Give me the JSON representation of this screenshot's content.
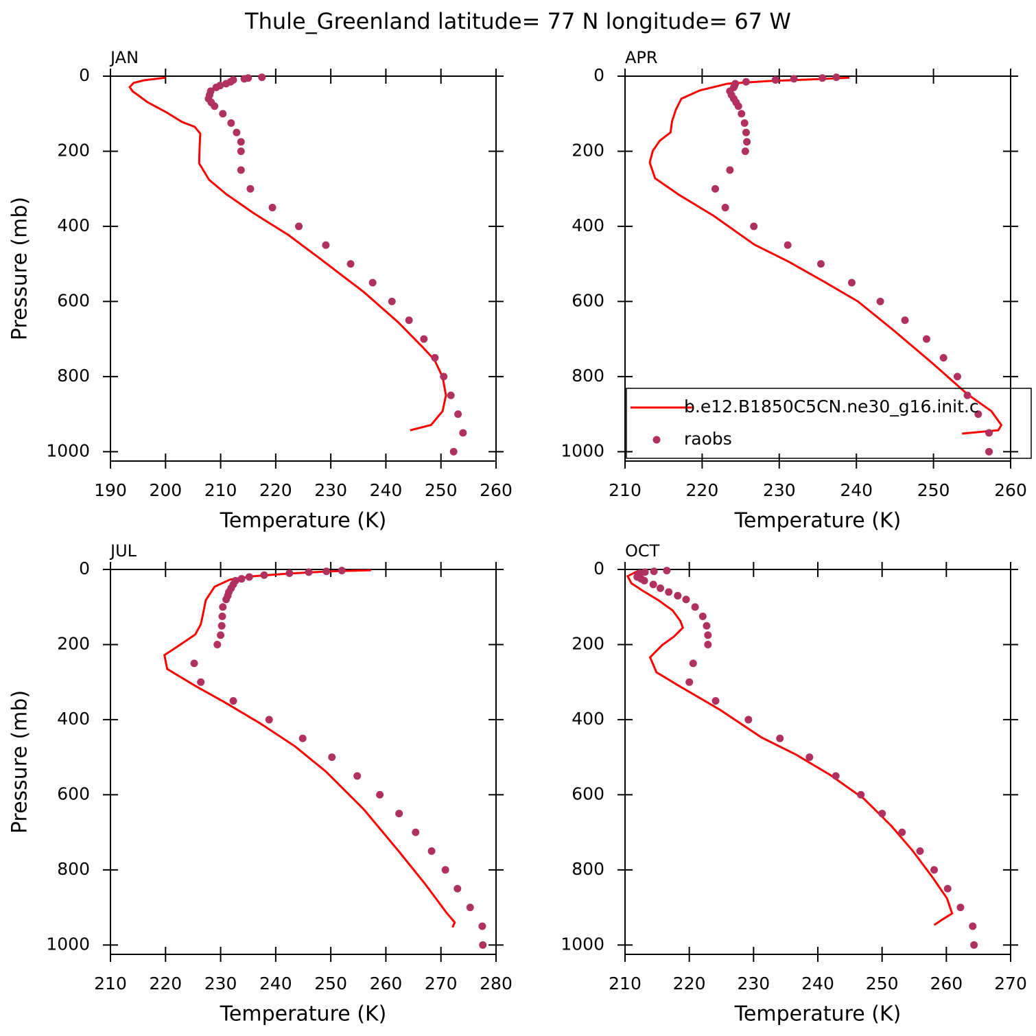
{
  "title": "Thule_Greenland  latitude= 77 N longitude= 67 W",
  "chart_data": [
    {
      "type": "line",
      "title": "JAN",
      "xlabel": "Temperature (K)",
      "ylabel": "Pressure (mb)",
      "xlim": [
        190,
        260
      ],
      "xticks": [
        190,
        200,
        210,
        220,
        230,
        240,
        250,
        260
      ],
      "ylim": [
        1025,
        0
      ],
      "yticks": [
        0,
        200,
        400,
        600,
        800,
        1000
      ],
      "series": [
        {
          "name": "b.e12.B1850C5CN.ne30_g16.init.c",
          "type": "line",
          "color": "#ff0000",
          "x": [
            200.0,
            196.1,
            194.2,
            193.5,
            194.0,
            196.7,
            200.0,
            203.0,
            205.3,
            206.3,
            206.2,
            206.1,
            207.9,
            211.0,
            216.0,
            222.3,
            228.5,
            236.0,
            242.2,
            246.5,
            248.8,
            250.3,
            250.9,
            250.3,
            248.2,
            244.4
          ],
          "values": [
            4,
            11,
            18,
            29,
            40,
            69,
            95,
            122,
            135,
            153,
            184,
            232,
            276,
            314,
            365,
            423,
            491,
            575,
            655,
            719,
            755,
            801,
            850,
            892,
            929,
            943
          ]
        },
        {
          "name": "raobs",
          "type": "scatter",
          "color": "#b03060",
          "x": [
            252.3,
            254.0,
            253.1,
            251.8,
            250.5,
            248.9,
            246.9,
            244.2,
            241.1,
            237.6,
            233.6,
            229.1,
            224.2,
            219.4,
            215.4,
            213.7,
            213.7,
            213.7,
            212.9,
            211.9,
            210.4,
            208.9,
            208.3,
            207.8,
            208.0,
            208.2,
            209.2,
            209.9,
            211.0,
            211.8,
            212.3,
            214.3,
            215.0,
            217.5
          ],
          "values": [
            1000,
            950,
            900,
            850,
            800,
            750,
            700,
            650,
            600,
            550,
            500,
            450,
            400,
            350,
            300,
            250,
            200,
            175,
            150,
            125,
            100,
            80,
            70,
            60,
            50,
            40,
            30,
            25,
            20,
            15,
            10,
            7,
            5,
            3
          ]
        }
      ]
    },
    {
      "type": "line",
      "title": "APR",
      "xlabel": "Temperature (K)",
      "legend": "lower right",
      "xlim": [
        210,
        260
      ],
      "xticks": [
        210,
        220,
        230,
        240,
        250,
        260
      ],
      "ylim": [
        1025,
        0
      ],
      "yticks": [
        0,
        200,
        400,
        600,
        800,
        1000
      ],
      "series": [
        {
          "name": "b.e12.B1850C5CN.ne30_g16.init.c",
          "type": "line",
          "color": "#ff0000",
          "x": [
            239.1,
            233.9,
            228.6,
            223.3,
            219.7,
            217.3,
            216.6,
            216.1,
            215.9,
            214.5,
            213.6,
            213.2,
            213.9,
            217.0,
            221.5,
            226.8,
            231.3,
            235.7,
            240.2,
            244.6,
            249.9,
            254.4,
            257.5,
            258.8,
            258.4,
            253.7
          ],
          "values": [
            4,
            9,
            13,
            20,
            38,
            60,
            89,
            120,
            150,
            172,
            199,
            230,
            272,
            316,
            372,
            449,
            495,
            546,
            600,
            673,
            765,
            847,
            892,
            929,
            943,
            952
          ]
        },
        {
          "name": "raobs",
          "type": "scatter",
          "color": "#b03060",
          "x": [
            257.2,
            257.2,
            255.8,
            254.4,
            253.1,
            251.3,
            249.1,
            246.3,
            243.1,
            239.4,
            235.4,
            231.1,
            226.7,
            223.0,
            221.7,
            223.6,
            225.6,
            225.8,
            225.7,
            225.5,
            225.1,
            224.7,
            224.4,
            224.1,
            223.8,
            223.6,
            224.1,
            224.2,
            224.3,
            225.7,
            229.5,
            231.9,
            235.6,
            237.4
          ],
          "values": [
            1000,
            950,
            900,
            850,
            800,
            750,
            700,
            650,
            600,
            550,
            500,
            450,
            400,
            350,
            300,
            250,
            200,
            175,
            150,
            125,
            100,
            80,
            70,
            60,
            50,
            40,
            30,
            25,
            20,
            15,
            10,
            7,
            5,
            3
          ]
        }
      ]
    },
    {
      "type": "line",
      "title": "JUL",
      "xlabel": "Temperature (K)",
      "ylabel": "Pressure (mb)",
      "xlim": [
        210,
        280
      ],
      "xticks": [
        210,
        220,
        230,
        240,
        250,
        260,
        270,
        280
      ],
      "ylim": [
        1025,
        0
      ],
      "yticks": [
        0,
        200,
        400,
        600,
        800,
        1000
      ],
      "series": [
        {
          "name": "b.e12.B1850C5CN.ne30_g16.init.c",
          "type": "line",
          "color": "#ff0000",
          "x": [
            257.3,
            249.7,
            242.3,
            236.0,
            231.7,
            228.9,
            227.3,
            226.8,
            226.4,
            225.4,
            222.3,
            219.8,
            220.3,
            225.4,
            231.0,
            237.3,
            243.5,
            249.1,
            256.0,
            262.2,
            267.2,
            270.9,
            272.5,
            272.1
          ],
          "values": [
            2,
            5,
            11,
            18,
            27,
            46,
            82,
            119,
            146,
            173,
            204,
            228,
            265,
            310,
            356,
            411,
            471,
            538,
            639,
            748,
            839,
            912,
            940,
            953
          ]
        },
        {
          "name": "raobs",
          "type": "scatter",
          "color": "#b03060",
          "x": [
            277.6,
            277.5,
            275.3,
            273.0,
            270.8,
            268.3,
            265.4,
            262.4,
            258.9,
            254.8,
            250.2,
            244.9,
            238.8,
            232.3,
            226.4,
            225.2,
            229.4,
            230.0,
            230.2,
            230.3,
            230.4,
            231.0,
            231.3,
            231.5,
            231.9,
            232.3,
            232.7,
            233.8,
            235.2,
            237.9,
            242.5,
            246.0,
            249.2,
            252.0
          ],
          "values": [
            1000,
            950,
            900,
            850,
            800,
            750,
            700,
            650,
            600,
            550,
            500,
            450,
            400,
            350,
            300,
            250,
            200,
            175,
            150,
            125,
            100,
            80,
            70,
            60,
            50,
            40,
            30,
            25,
            20,
            15,
            10,
            7,
            5,
            3
          ]
        }
      ]
    },
    {
      "type": "line",
      "title": "OCT",
      "xlabel": "Temperature (K)",
      "xlim": [
        210,
        270
      ],
      "xticks": [
        210,
        220,
        230,
        240,
        250,
        260,
        270
      ],
      "ylim": [
        1025,
        0
      ],
      "yticks": [
        0,
        200,
        400,
        600,
        800,
        1000
      ],
      "series": [
        {
          "name": "b.e12.B1850C5CN.ne30_g16.init.c",
          "type": "line",
          "color": "#ff0000",
          "x": [
            212.0,
            210.4,
            211.0,
            212.6,
            215.2,
            217.4,
            218.6,
            219.0,
            217.6,
            215.8,
            213.9,
            214.9,
            218.4,
            224.8,
            231.2,
            236.6,
            241.9,
            247.2,
            251.5,
            254.7,
            257.9,
            260.1,
            260.9,
            259.5,
            258.1
          ],
          "values": [
            4,
            18,
            37,
            55,
            82,
            109,
            137,
            155,
            179,
            201,
            234,
            274,
            310,
            374,
            447,
            493,
            547,
            611,
            684,
            748,
            821,
            876,
            916,
            931,
            947
          ]
        },
        {
          "name": "raobs",
          "type": "scatter",
          "color": "#b03060",
          "x": [
            264.3,
            264.1,
            262.2,
            260.2,
            258.1,
            255.9,
            253.1,
            250.0,
            246.7,
            242.8,
            238.7,
            234.1,
            229.2,
            224.1,
            220.0,
            220.6,
            222.9,
            222.9,
            222.7,
            222.1,
            220.9,
            219.5,
            218.2,
            216.8,
            215.5,
            214.4,
            213.0,
            212.5,
            211.9,
            212.0,
            212.3,
            213.1,
            214.5,
            216.5
          ],
          "values": [
            1000,
            950,
            900,
            850,
            800,
            750,
            700,
            650,
            600,
            550,
            500,
            450,
            400,
            350,
            300,
            250,
            200,
            175,
            150,
            125,
            100,
            80,
            70,
            60,
            50,
            40,
            30,
            25,
            20,
            15,
            10,
            7,
            5,
            3
          ]
        }
      ]
    }
  ]
}
